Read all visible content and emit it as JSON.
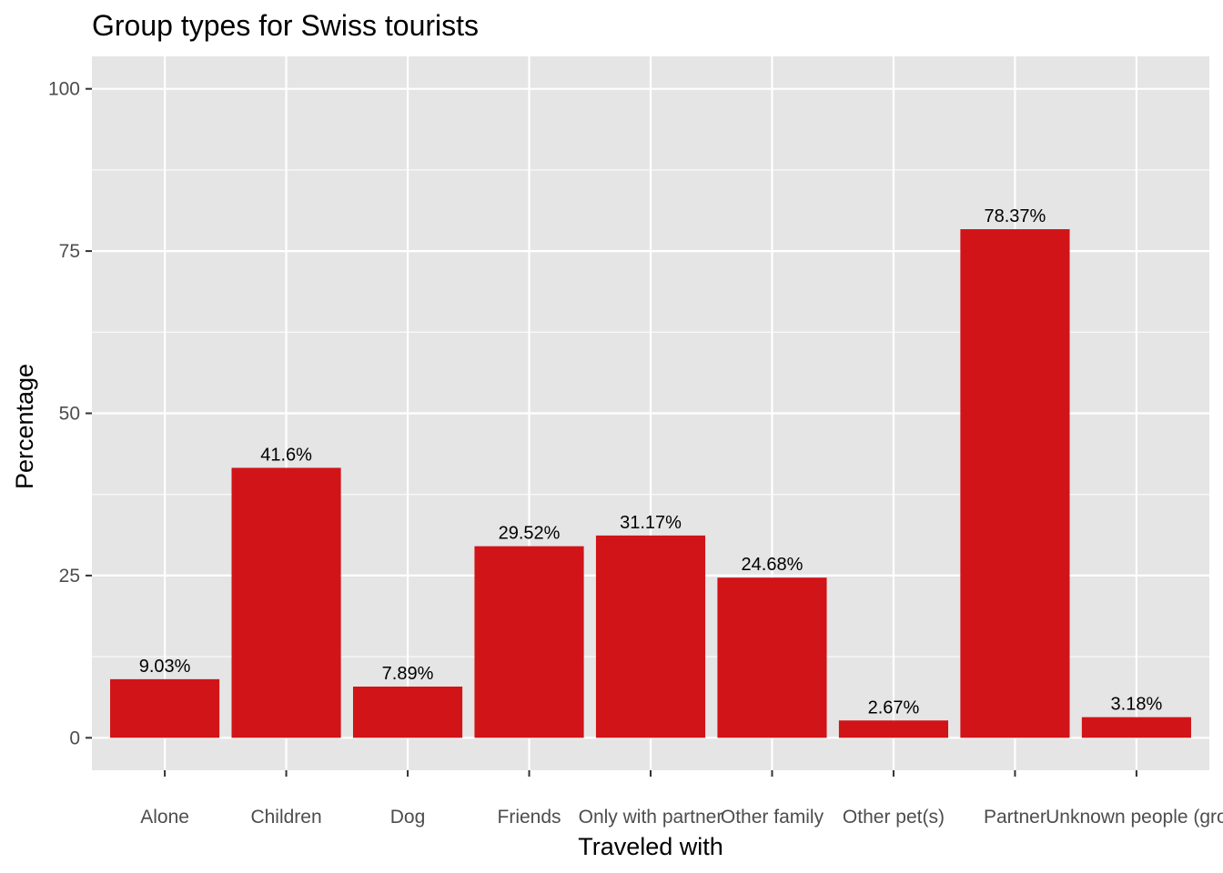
{
  "chart_data": {
    "type": "bar",
    "title": "Group types for Swiss tourists",
    "xlabel": "Traveled with",
    "ylabel": "Percentage",
    "categories": [
      "Alone",
      "Children",
      "Dog",
      "Friends",
      "Only with partner",
      "Other family",
      "Other pet(s)",
      "Partner",
      "Unknown people (gro"
    ],
    "values": [
      9.03,
      41.6,
      7.89,
      29.52,
      31.17,
      24.68,
      2.67,
      78.37,
      3.18
    ],
    "data_labels": [
      "9.03%",
      "41.6%",
      "7.89%",
      "29.52%",
      "31.17%",
      "24.68%",
      "2.67%",
      "78.37%",
      "3.18%"
    ],
    "ylim": [
      -5,
      105
    ],
    "yticks": [
      0,
      25,
      50,
      75,
      100
    ],
    "grid": true,
    "legend": "none",
    "bar_color": "#D01418",
    "panel_color": "#E5E5E5",
    "grid_color": "#FFFFFF"
  }
}
